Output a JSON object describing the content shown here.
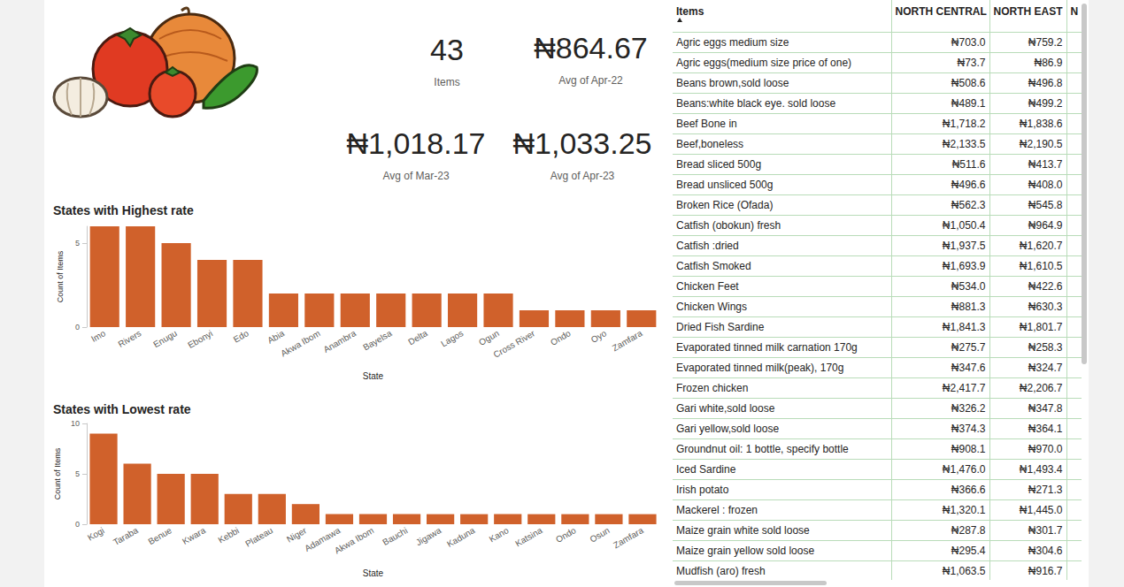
{
  "cards": [
    {
      "value": "43",
      "label": "Items"
    },
    {
      "value": "₦864.67",
      "label": "Avg of Apr-22"
    },
    {
      "value": "₦1,018.17",
      "label": "Avg of Mar-23"
    },
    {
      "value": "₦1,033.25",
      "label": "Avg of Apr-23"
    }
  ],
  "chart_data": [
    {
      "type": "bar",
      "title": "States with Highest rate",
      "xlabel": "State",
      "ylabel": "Count of Items",
      "categories": [
        "Imo",
        "Rivers",
        "Enugu",
        "Ebonyi",
        "Edo",
        "Abia",
        "Akwa Ibom",
        "Anambra",
        "Bayelsa",
        "Delta",
        "Lagos",
        "Ogun",
        "Cross River",
        "Ondo",
        "Oyo",
        "Zamfara"
      ],
      "values": [
        6,
        6,
        5,
        4,
        4,
        2,
        2,
        2,
        2,
        2,
        2,
        2,
        1,
        1,
        1,
        1
      ],
      "color": "#d0612b",
      "ylim": [
        0,
        6
      ],
      "yticks": [
        0,
        5
      ],
      "grid": false
    },
    {
      "type": "bar",
      "title": "States with Lowest rate",
      "xlabel": "State",
      "ylabel": "Count of Items",
      "categories": [
        "Kogi",
        "Taraba",
        "Benue",
        "Kwara",
        "Kebbi",
        "Plateau",
        "Niger",
        "Adamawa",
        "Akwa Ibom",
        "Bauchi",
        "Jigawa",
        "Kaduna",
        "Kano",
        "Katsina",
        "Ondo",
        "Osun",
        "Zamfara"
      ],
      "values": [
        9,
        6,
        5,
        5,
        3,
        3,
        2,
        1,
        1,
        1,
        1,
        1,
        1,
        1,
        1,
        1,
        1
      ],
      "color": "#d0612b",
      "ylim": [
        0,
        10
      ],
      "yticks": [
        0,
        5,
        10
      ],
      "grid": false
    }
  ],
  "table": {
    "header": [
      "Items",
      "NORTH CENTRAL",
      "NORTH EAST",
      "N"
    ],
    "rows": [
      [
        "Agric eggs medium size",
        "₦703.0",
        "₦759.2"
      ],
      [
        "Agric eggs(medium size price of one)",
        "₦73.7",
        "₦86.9"
      ],
      [
        "Beans brown,sold loose",
        "₦508.6",
        "₦496.8"
      ],
      [
        "Beans:white black eye. sold loose",
        "₦489.1",
        "₦499.2"
      ],
      [
        "Beef Bone in",
        "₦1,718.2",
        "₦1,838.6"
      ],
      [
        "Beef,boneless",
        "₦2,133.5",
        "₦2,190.5"
      ],
      [
        "Bread sliced 500g",
        "₦511.6",
        "₦413.7"
      ],
      [
        "Bread unsliced 500g",
        "₦496.6",
        "₦408.0"
      ],
      [
        "Broken Rice (Ofada)",
        "₦562.3",
        "₦545.8"
      ],
      [
        "Catfish (obokun) fresh",
        "₦1,050.4",
        "₦964.9"
      ],
      [
        "Catfish :dried",
        "₦1,937.5",
        "₦1,620.7"
      ],
      [
        "Catfish Smoked",
        "₦1,693.9",
        "₦1,610.5"
      ],
      [
        "Chicken Feet",
        "₦534.0",
        "₦422.6"
      ],
      [
        "Chicken Wings",
        "₦881.3",
        "₦630.3"
      ],
      [
        "Dried Fish Sardine",
        "₦1,841.3",
        "₦1,801.7"
      ],
      [
        "Evaporated tinned milk carnation 170g",
        "₦275.7",
        "₦258.3"
      ],
      [
        "Evaporated tinned milk(peak), 170g",
        "₦347.6",
        "₦324.7"
      ],
      [
        "Frozen chicken",
        "₦2,417.7",
        "₦2,206.7"
      ],
      [
        "Gari white,sold loose",
        "₦326.2",
        "₦347.8"
      ],
      [
        "Gari yellow,sold loose",
        "₦374.3",
        "₦364.1"
      ],
      [
        "Groundnut oil: 1 bottle, specify bottle",
        "₦908.1",
        "₦970.0"
      ],
      [
        "Iced Sardine",
        "₦1,476.0",
        "₦1,493.4"
      ],
      [
        "Irish potato",
        "₦366.6",
        "₦271.3"
      ],
      [
        "Mackerel : frozen",
        "₦1,320.1",
        "₦1,445.0"
      ],
      [
        "Maize grain white sold loose",
        "₦287.8",
        "₦301.7"
      ],
      [
        "Maize grain yellow sold loose",
        "₦295.4",
        "₦304.6"
      ],
      [
        "Mudfish (aro) fresh",
        "₦1,063.5",
        "₦916.7"
      ]
    ]
  }
}
